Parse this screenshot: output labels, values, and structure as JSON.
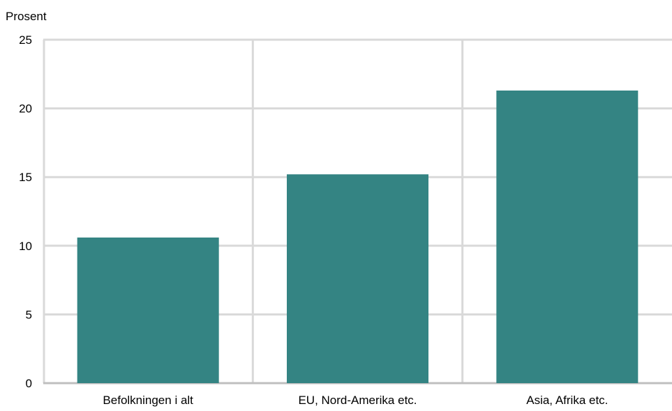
{
  "chart_data": {
    "type": "bar",
    "title": "",
    "unit_label": "Prosent",
    "xlabel": "",
    "ylabel": "",
    "categories": [
      "Befolkningen i alt",
      "EU, Nord-Amerika etc.",
      "Asia, Afrika etc."
    ],
    "values": [
      10.6,
      15.2,
      21.3
    ],
    "ylim": [
      0,
      25
    ],
    "yticks": [
      0,
      5,
      10,
      15,
      20,
      25
    ],
    "grid": true,
    "bar_color": "#348483",
    "grid_color": "#d9d9d9",
    "axis_color": "#bfbfbf"
  }
}
